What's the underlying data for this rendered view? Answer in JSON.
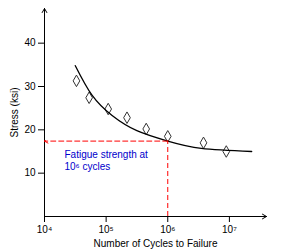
{
  "chart_data": {
    "type": "scatter",
    "x_label": "Number of Cycles to Failure",
    "y_label": "Stress (ksi)",
    "log": "x",
    "grid": false,
    "xlim": [
      10000,
      40000000
    ],
    "xticks": [
      {
        "value": 10000,
        "label": "10⁴"
      },
      {
        "value": 100000,
        "label": "10⁵"
      },
      {
        "value": 1000000,
        "label": "10⁶"
      },
      {
        "value": 10000000,
        "label": "10⁷"
      }
    ],
    "ylim": [
      0,
      48
    ],
    "yticks": [
      10,
      20,
      30,
      40
    ],
    "series": [
      {
        "type": "scatter",
        "marker": "diamond",
        "color": "#333333",
        "x": [
          33000,
          53000,
          108000,
          218000,
          447000,
          1000000,
          3800000,
          8900000
        ],
        "values": [
          31.3,
          27.4,
          24.8,
          22.8,
          20.2,
          18.5,
          17.0,
          15.0
        ]
      },
      {
        "type": "line",
        "line_style": "solid",
        "color": "#000000",
        "x": [
          31600,
          59000,
          125000,
          315000,
          1000000,
          3500000,
          23000000
        ],
        "values": [
          34.8,
          28.0,
          23.3,
          19.8,
          17.4,
          15.7,
          15.0
        ]
      }
    ],
    "annotation": {
      "x": 1000000,
      "y": 17.4,
      "color": "#ff0000",
      "line_style": "dashed",
      "label": {
        "text": "Fatigue strength at\n10⁶ cycles",
        "color": "#0000cc"
      }
    }
  }
}
